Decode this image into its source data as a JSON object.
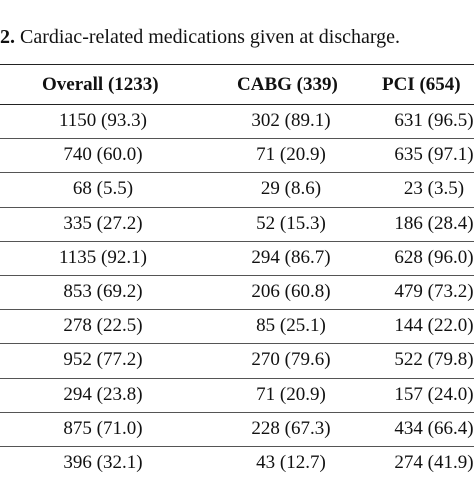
{
  "caption": {
    "number": "2.",
    "text": "Cardiac-related medications given at discharge."
  },
  "table": {
    "headers": [
      "Overall (1233)",
      "CABG (339)",
      "PCI (654)"
    ],
    "rows": [
      [
        "1150 (93.3)",
        "302 (89.1)",
        "631 (96.5)"
      ],
      [
        "740 (60.0)",
        "71 (20.9)",
        "635 (97.1)"
      ],
      [
        "68 (5.5)",
        "29 (8.6)",
        "23 (3.5)"
      ],
      [
        "335 (27.2)",
        "52 (15.3)",
        "186 (28.4)"
      ],
      [
        "1135 (92.1)",
        "294 (86.7)",
        "628 (96.0)"
      ],
      [
        "853 (69.2)",
        "206 (60.8)",
        "479 (73.2)"
      ],
      [
        "278 (22.5)",
        "85 (25.1)",
        "144 (22.0)"
      ],
      [
        "952 (77.2)",
        "270 (79.6)",
        "522 (79.8)"
      ],
      [
        "294 (23.8)",
        "71 (20.9)",
        "157 (24.0)"
      ],
      [
        "875 (71.0)",
        "228 (67.3)",
        "434 (66.4)"
      ],
      [
        "396 (32.1)",
        "43 (12.7)",
        "274 (41.9)"
      ]
    ]
  }
}
